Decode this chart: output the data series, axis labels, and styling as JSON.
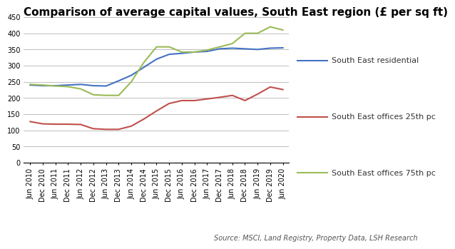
{
  "title": "Comparison of average capital values, South East region (£ per sq ft)",
  "source": "Source: MSCI, Land Registry, Property Data, LSH Research",
  "x_labels": [
    "Jun 2010",
    "Dec 2010",
    "Jun 2011",
    "Dec 2011",
    "Jun 2012",
    "Dec 2012",
    "Jun 2013",
    "Dec 2013",
    "Jun 2014",
    "Dec 2014",
    "Jun 2015",
    "Dec 2015",
    "Jun 2016",
    "Dec 2016",
    "Jun 2017",
    "Dec 2017",
    "Jun 2018",
    "Dec 2018",
    "Jun 2019",
    "Dec 2019",
    "Jun 2020"
  ],
  "residential": [
    240,
    238,
    238,
    240,
    242,
    238,
    237,
    253,
    270,
    295,
    320,
    335,
    338,
    342,
    344,
    352,
    354,
    352,
    350,
    354,
    355
  ],
  "offices_25th": [
    127,
    120,
    119,
    119,
    118,
    105,
    103,
    103,
    113,
    135,
    160,
    183,
    192,
    192,
    197,
    202,
    208,
    192,
    212,
    234,
    226
  ],
  "offices_75th": [
    242,
    240,
    237,
    235,
    228,
    210,
    208,
    208,
    250,
    310,
    358,
    358,
    342,
    342,
    348,
    358,
    368,
    400,
    400,
    420,
    410
  ],
  "residential_color": "#4472C4",
  "offices_25th_color": "#C0504D",
  "offices_75th_color": "#9BBB59",
  "ylim": [
    0,
    450
  ],
  "yticks": [
    0,
    50,
    100,
    150,
    200,
    250,
    300,
    350,
    400,
    450
  ],
  "legend_labels": [
    "South East residential",
    "South East offices 25th pc",
    "South East offices 75th pc"
  ],
  "bg_color": "#FFFFFF",
  "grid_color": "#BFBFBF",
  "title_fontsize": 11,
  "tick_fontsize": 7,
  "legend_fontsize": 8,
  "source_fontsize": 7
}
